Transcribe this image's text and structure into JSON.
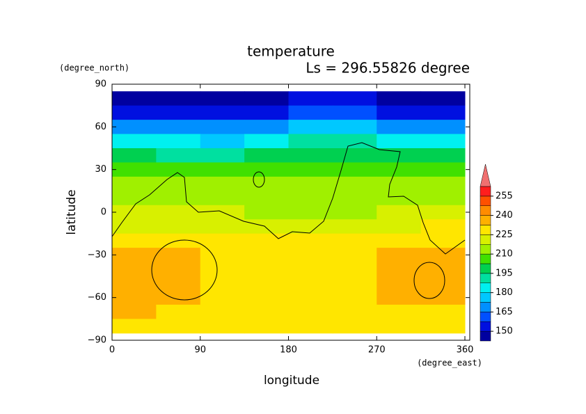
{
  "chart_data": {
    "type": "contourf",
    "title": "temperature",
    "subtitle": "Ls = 296.55826 degree",
    "x_label": "longitude",
    "x_unit": "(degree_east)",
    "y_label": "latitude",
    "y_unit": "(degree_north)",
    "xlim": [
      0,
      360
    ],
    "xticks": [
      0,
      90,
      180,
      270,
      360
    ],
    "ylim": [
      -90,
      90
    ],
    "yticks": [
      {
        "value": -90,
        "label": "−90"
      },
      {
        "value": -60,
        "label": "−60"
      },
      {
        "value": -30,
        "label": "−30"
      },
      0,
      30,
      60,
      90
    ],
    "lon_edges": [
      0,
      45,
      90,
      135,
      180,
      225,
      270,
      315,
      360
    ],
    "lat_edges": [
      85,
      75,
      65,
      55,
      45,
      35,
      25,
      15,
      5,
      -5,
      -15,
      -25,
      -35,
      -45,
      -55,
      -65,
      -75,
      -85
    ],
    "z": [
      [
        146,
        146,
        146,
        146,
        152,
        154,
        148,
        146
      ],
      [
        153,
        153,
        152,
        155,
        160,
        162,
        155,
        153
      ],
      [
        168,
        166,
        165,
        170,
        175,
        176,
        170,
        168
      ],
      [
        182,
        180,
        178,
        184,
        188,
        188,
        184,
        182
      ],
      [
        196,
        194,
        193,
        197,
        200,
        200,
        197,
        196
      ],
      [
        205,
        204,
        203,
        206,
        208,
        208,
        206,
        205
      ],
      [
        210,
        212,
        211,
        212,
        213,
        212,
        214,
        214
      ],
      [
        215,
        216,
        213,
        214,
        213,
        214,
        216,
        217
      ],
      [
        219,
        219,
        218,
        216,
        215,
        217,
        221,
        224
      ],
      [
        224,
        223,
        222,
        221,
        219,
        221,
        224,
        226
      ],
      [
        230,
        229,
        228,
        227,
        226,
        228,
        230,
        231
      ],
      [
        238,
        236,
        230,
        229,
        229,
        230,
        236,
        238
      ],
      [
        236,
        234,
        230,
        229,
        229,
        230,
        235,
        237
      ],
      [
        234,
        234,
        230,
        229,
        229,
        230,
        234,
        234
      ],
      [
        234,
        233,
        229,
        229,
        229,
        229,
        233,
        234
      ],
      [
        233,
        230,
        228,
        228,
        228,
        228,
        229,
        230
      ],
      [
        228,
        228,
        228,
        228,
        228,
        228,
        228,
        228
      ]
    ],
    "levels": [
      142.5,
      150,
      157.5,
      165,
      172.5,
      180,
      187.5,
      195,
      202.5,
      210,
      217.5,
      225,
      232.5,
      240,
      247.5,
      255,
      262.5
    ],
    "colors": [
      "#0000a0",
      "#0010e0",
      "#0050ff",
      "#0090ff",
      "#00c8ff",
      "#00f0f0",
      "#00e0a0",
      "#00d050",
      "#40e000",
      "#a0f000",
      "#d8f000",
      "#ffe600",
      "#ffb000",
      "#ff8c00",
      "#ff5000",
      "#ff1e1e"
    ],
    "extend_color": "#f07070",
    "colorbar_ticks": [
      150,
      165,
      180,
      195,
      210,
      225,
      240,
      255
    ]
  }
}
